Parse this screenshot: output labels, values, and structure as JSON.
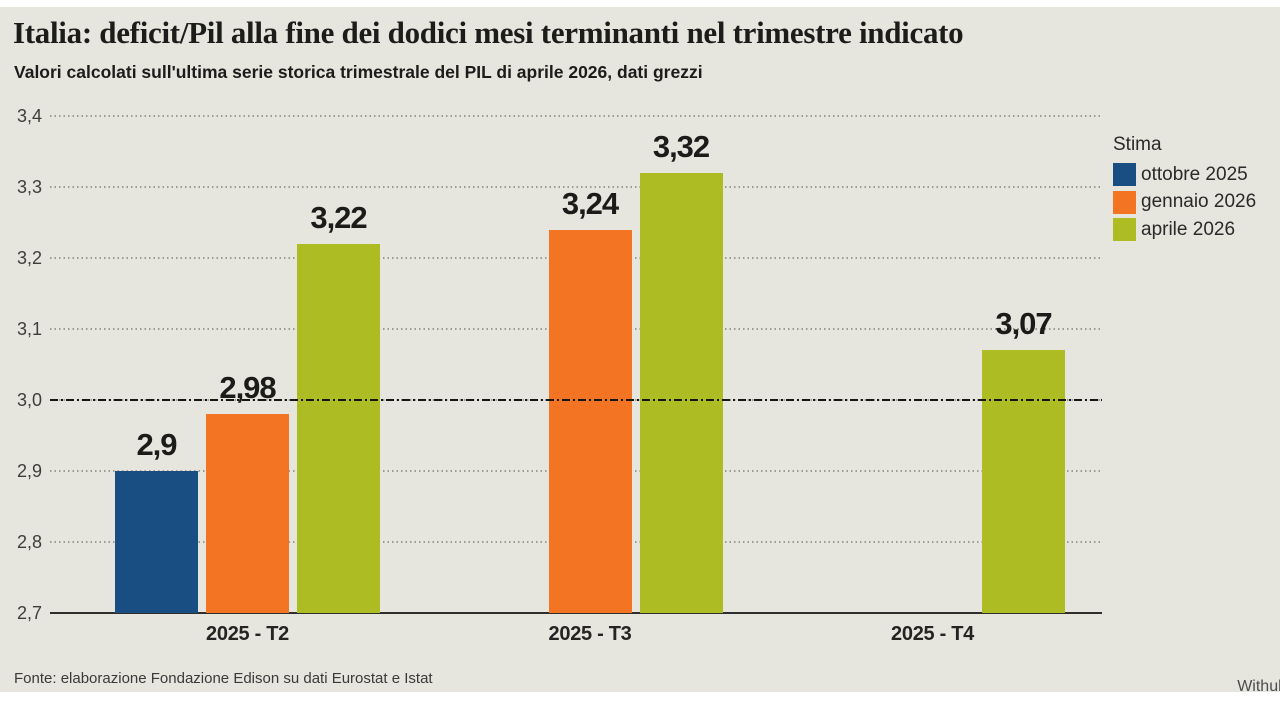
{
  "header": {
    "title": "Italia: deficit/Pil alla fine dei dodici mesi terminanti nel trimestre indicato",
    "subtitle": "Valori calcolati sull'ultima serie storica trimestrale del PIL di aprile 2026, dati grezzi"
  },
  "legend": {
    "title": "Stima",
    "items": [
      {
        "label": "ottobre 2025",
        "color": "#184e81"
      },
      {
        "label": "gennaio 2026",
        "color": "#f37423"
      },
      {
        "label": "aprile 2026",
        "color": "#aebc23"
      }
    ]
  },
  "footer": {
    "source": "Fonte: elaborazione Fondazione Edison su dati Eurostat e Istat",
    "watermark": "Withub"
  },
  "colors": {
    "panel_background": "#e6e5de",
    "reference_line": "#151513",
    "grid": "#9c9c94"
  },
  "chart_data": {
    "type": "bar",
    "title": "Italia: deficit/Pil alla fine dei dodici mesi terminanti nel trimestre indicato",
    "subtitle": "Valori calcolati sull'ultima serie storica trimestrale del PIL di aprile 2026, dati grezzi",
    "categories": [
      "2025 - T2",
      "2025 - T3",
      "2025 - T4"
    ],
    "series": [
      {
        "name": "ottobre 2025",
        "color": "#184e81",
        "values": [
          2.9,
          null,
          null
        ],
        "labels": [
          "2,9",
          null,
          null
        ]
      },
      {
        "name": "gennaio 2026",
        "color": "#f37423",
        "values": [
          2.98,
          3.24,
          null
        ],
        "labels": [
          "2,98",
          "3,24",
          null
        ]
      },
      {
        "name": "aprile 2026",
        "color": "#aebc23",
        "values": [
          3.22,
          3.32,
          3.07
        ],
        "labels": [
          "3,22",
          "3,32",
          "3,07"
        ]
      }
    ],
    "ylim": [
      2.7,
      3.4
    ],
    "ytick_step": 0.1,
    "ytick_values": [
      2.7,
      2.8,
      2.9,
      3.0,
      3.1,
      3.2,
      3.3,
      3.4
    ],
    "ytick_labels": [
      "2,7",
      "2,8",
      "2,9",
      "3,0",
      "3,1",
      "3,2",
      "3,3",
      "3,4"
    ],
    "reference_line": 3.0,
    "grid": "horizontal-dotted",
    "legend_position": "right",
    "xlabel": "",
    "ylabel": ""
  }
}
